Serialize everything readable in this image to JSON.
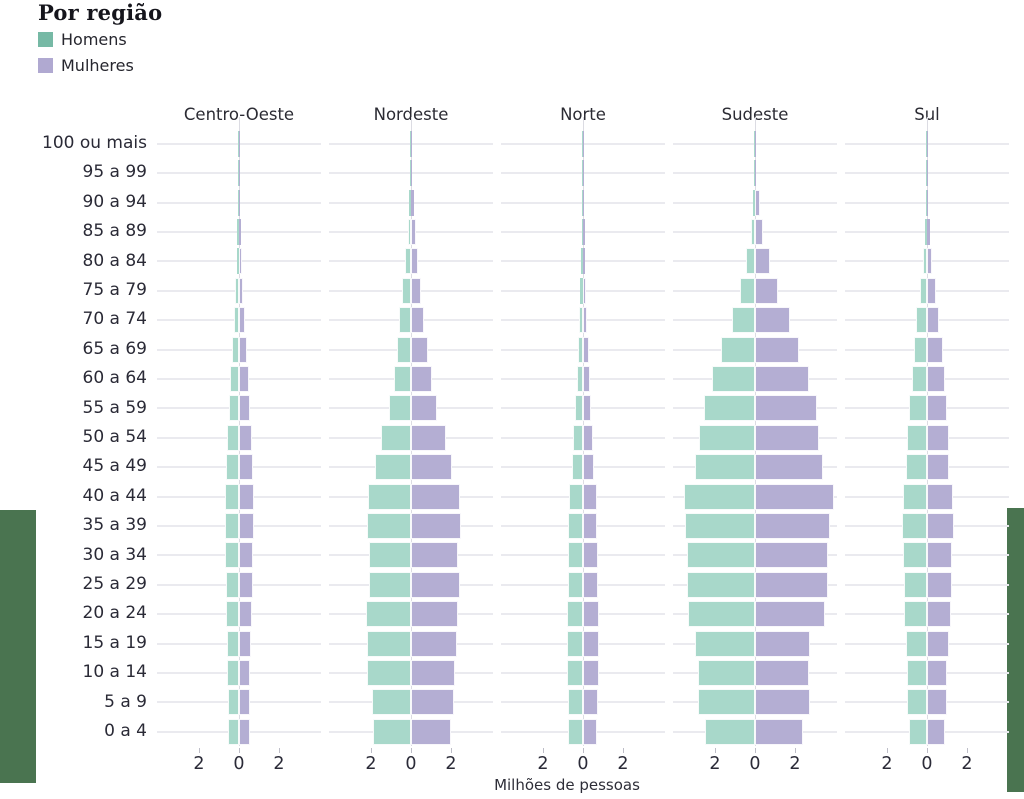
{
  "title": "Por região",
  "legend": [
    {
      "label": "Homens",
      "color": "#76b9a5"
    },
    {
      "label": "Mulheres",
      "color": "#b0a9d1"
    }
  ],
  "axis": {
    "xlabel": "Milhões de pessoas",
    "x_ticks": [
      "2",
      "0",
      "2"
    ]
  },
  "colors": {
    "men_bar": "#a8d8ca",
    "women_bar": "#b4aed3",
    "gridline": "#eaeaef",
    "center_line": "#dcdce3",
    "text": "#2a2a36",
    "green_block": "#4a7450"
  },
  "chart_data": {
    "type": "bar",
    "subtype": "population-pyramid-small-multiples",
    "title": "Por região",
    "xlabel": "Milhões de pessoas",
    "unit": "millions of people",
    "x_tick_values": [
      -2,
      0,
      2
    ],
    "xlim_per_facet": [
      -4.2,
      4.2
    ],
    "grid": "horizontal lines per age group, vertical line at 0",
    "legend_position": "top-left",
    "series_names": [
      "Homens",
      "Mulheres"
    ],
    "age_groups": [
      "100 ou mais",
      "95 a 99",
      "90 a 94",
      "85 a 89",
      "80 a 84",
      "75 a 79",
      "70 a 74",
      "65 a 69",
      "60 a 64",
      "55 a 59",
      "50 a 54",
      "45 a 49",
      "40 a 44",
      "35 a 39",
      "30 a 34",
      "25 a 29",
      "20 a 24",
      "15 a 19",
      "10 a 14",
      "5 a 9",
      "0 a 4"
    ],
    "regions": [
      {
        "name": "Centro-Oeste",
        "homens": [
          0.01,
          0.02,
          0.05,
          0.08,
          0.12,
          0.18,
          0.26,
          0.35,
          0.44,
          0.52,
          0.6,
          0.65,
          0.7,
          0.71,
          0.69,
          0.67,
          0.66,
          0.62,
          0.59,
          0.56,
          0.55
        ],
        "mulheres": [
          0.01,
          0.03,
          0.07,
          0.11,
          0.16,
          0.22,
          0.3,
          0.4,
          0.49,
          0.57,
          0.64,
          0.69,
          0.73,
          0.73,
          0.7,
          0.68,
          0.66,
          0.61,
          0.57,
          0.54,
          0.53
        ]
      },
      {
        "name": "Nordeste",
        "homens": [
          0.01,
          0.04,
          0.09,
          0.17,
          0.28,
          0.43,
          0.58,
          0.7,
          0.87,
          1.08,
          1.5,
          1.8,
          2.15,
          2.2,
          2.1,
          2.1,
          2.25,
          2.2,
          2.2,
          1.95,
          1.9
        ],
        "mulheres": [
          0.02,
          0.06,
          0.13,
          0.24,
          0.33,
          0.5,
          0.67,
          0.85,
          1.05,
          1.3,
          1.75,
          2.05,
          2.45,
          2.5,
          2.35,
          2.45,
          2.35,
          2.3,
          2.2,
          2.15,
          2.0
        ]
      },
      {
        "name": "Norte",
        "homens": [
          0.01,
          0.01,
          0.03,
          0.06,
          0.1,
          0.14,
          0.19,
          0.25,
          0.32,
          0.4,
          0.5,
          0.57,
          0.72,
          0.73,
          0.77,
          0.75,
          0.8,
          0.78,
          0.78,
          0.75,
          0.73
        ],
        "mulheres": [
          0.01,
          0.02,
          0.05,
          0.08,
          0.12,
          0.16,
          0.21,
          0.28,
          0.34,
          0.42,
          0.5,
          0.55,
          0.7,
          0.72,
          0.74,
          0.76,
          0.8,
          0.78,
          0.78,
          0.73,
          0.7
        ]
      },
      {
        "name": "Sudeste",
        "homens": [
          0.01,
          0.03,
          0.08,
          0.22,
          0.45,
          0.73,
          1.17,
          1.7,
          2.15,
          2.55,
          2.8,
          3.0,
          3.55,
          3.5,
          3.4,
          3.4,
          3.35,
          3.0,
          2.85,
          2.85,
          2.5
        ],
        "mulheres": [
          0.02,
          0.06,
          0.23,
          0.4,
          0.75,
          1.15,
          1.75,
          2.2,
          2.7,
          3.1,
          3.2,
          3.4,
          3.95,
          3.75,
          3.65,
          3.65,
          3.5,
          2.75,
          2.7,
          2.75,
          2.4
        ]
      },
      {
        "name": "Sul",
        "homens": [
          0.01,
          0.01,
          0.03,
          0.1,
          0.2,
          0.35,
          0.53,
          0.65,
          0.77,
          0.88,
          1.0,
          1.05,
          1.22,
          1.23,
          1.2,
          1.17,
          1.15,
          1.05,
          1.0,
          1.0,
          0.92
        ],
        "mulheres": [
          0.01,
          0.03,
          0.06,
          0.15,
          0.27,
          0.43,
          0.62,
          0.78,
          0.88,
          1.0,
          1.1,
          1.1,
          1.32,
          1.33,
          1.27,
          1.25,
          1.2,
          1.1,
          1.02,
          1.0,
          0.9
        ]
      }
    ]
  }
}
